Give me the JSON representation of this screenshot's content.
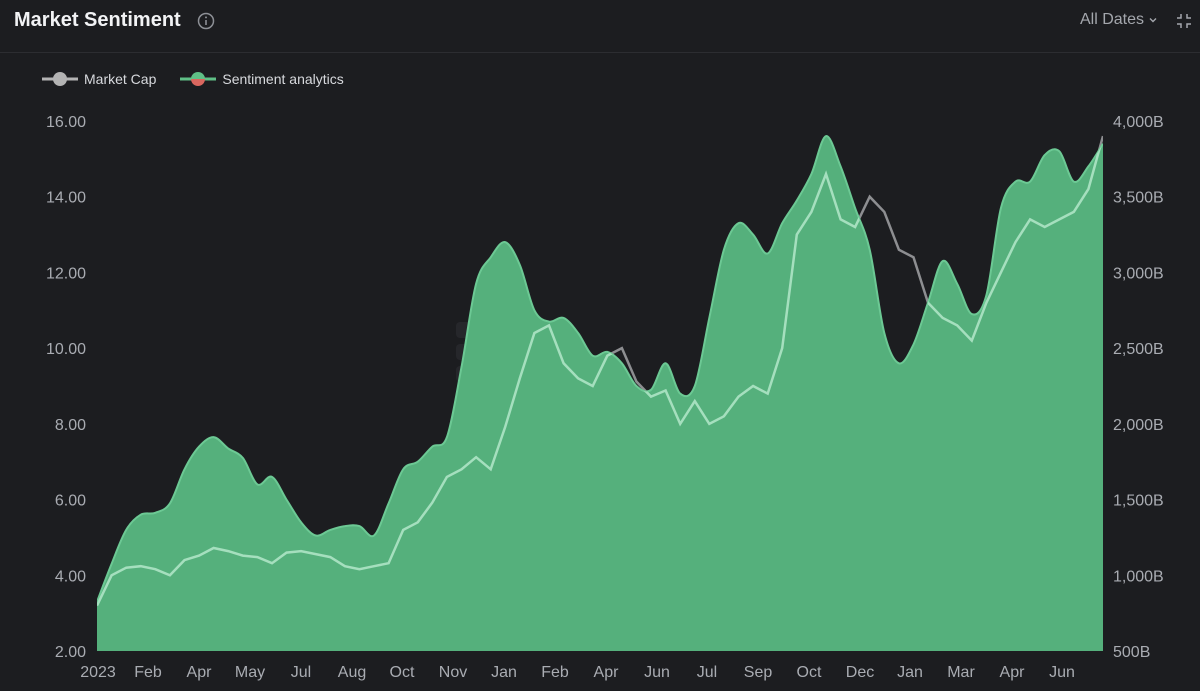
{
  "header": {
    "title": "Market Sentiment",
    "dates_label": "All Dates"
  },
  "legend": [
    {
      "name": "Market Cap",
      "color": "#b3b3b3"
    },
    {
      "name": "Sentiment analytics",
      "color_positive": "#5fbf86",
      "color_negative": "#d9675f"
    }
  ],
  "colors": {
    "area_fill": "#55b07c",
    "area_line": "#6cc994",
    "market_cap_line_over_area": "#a5dfbe",
    "market_cap_line_over_bg": "#8d8e91",
    "background": "#1c1d20",
    "axis_text": "#a9acb2"
  },
  "chart_data": {
    "type": "area",
    "y_left": {
      "ticks": [
        "16.00",
        "14.00",
        "12.00",
        "10.00",
        "8.00",
        "6.00",
        "4.00",
        "2.00"
      ],
      "range": [
        2,
        16
      ]
    },
    "y_right": {
      "ticks": [
        "4,000B",
        "3,500B",
        "3,000B",
        "2,500B",
        "2,000B",
        "1,500B",
        "1,000B",
        "500B"
      ],
      "range": [
        500,
        4000
      ],
      "unit": "B"
    },
    "x_axis": {
      "labels": [
        "2023",
        "Feb",
        "Apr",
        "May",
        "Jul",
        "Aug",
        "Oct",
        "Nov",
        "Jan",
        "Feb",
        "Apr",
        "Jun",
        "Jul",
        "Sep",
        "Oct",
        "Dec",
        "Jan",
        "Mar",
        "Apr",
        "Jun"
      ],
      "range_months": [
        0,
        30
      ]
    },
    "series": [
      {
        "name": "Sentiment analytics",
        "axis": "left",
        "points": [
          [
            0,
            3.3
          ],
          [
            0.5,
            4.3
          ],
          [
            1,
            5.2
          ],
          [
            1.5,
            5.6
          ],
          [
            2,
            5.65
          ],
          [
            2.5,
            5.9
          ],
          [
            3,
            6.8
          ],
          [
            3.5,
            7.4
          ],
          [
            4,
            7.65
          ],
          [
            4.5,
            7.35
          ],
          [
            5,
            7.1
          ],
          [
            5.5,
            6.4
          ],
          [
            6,
            6.6
          ],
          [
            6.5,
            6.0
          ],
          [
            7,
            5.4
          ],
          [
            7.5,
            5.05
          ],
          [
            8,
            5.2
          ],
          [
            8.5,
            5.3
          ],
          [
            9,
            5.3
          ],
          [
            9.5,
            5.05
          ],
          [
            10,
            5.9
          ],
          [
            10.5,
            6.8
          ],
          [
            11,
            7.0
          ],
          [
            11.5,
            7.4
          ],
          [
            12,
            7.65
          ],
          [
            12.5,
            9.5
          ],
          [
            13,
            11.7
          ],
          [
            13.5,
            12.4
          ],
          [
            14,
            12.8
          ],
          [
            14.5,
            12.2
          ],
          [
            15,
            11.0
          ],
          [
            15.5,
            10.7
          ],
          [
            16,
            10.8
          ],
          [
            16.5,
            10.4
          ],
          [
            17,
            9.8
          ],
          [
            17.5,
            9.9
          ],
          [
            18,
            9.6
          ],
          [
            18.5,
            9.0
          ],
          [
            19,
            8.9
          ],
          [
            19.5,
            9.6
          ],
          [
            20,
            8.8
          ],
          [
            20.5,
            9.0
          ],
          [
            21,
            10.8
          ],
          [
            21.5,
            12.6
          ],
          [
            22,
            13.3
          ],
          [
            22.5,
            13.0
          ],
          [
            23,
            12.5
          ],
          [
            23.5,
            13.3
          ],
          [
            24,
            13.9
          ],
          [
            24.5,
            14.6
          ],
          [
            25,
            15.6
          ],
          [
            25.5,
            14.8
          ],
          [
            26,
            13.7
          ],
          [
            26.5,
            12.6
          ],
          [
            27,
            10.4
          ],
          [
            27.5,
            9.6
          ],
          [
            28,
            10.1
          ],
          [
            28.5,
            11.2
          ],
          [
            29,
            12.3
          ],
          [
            29.5,
            11.7
          ],
          [
            30,
            10.9
          ],
          [
            30.5,
            11.4
          ],
          [
            31,
            13.7
          ],
          [
            31.5,
            14.4
          ],
          [
            32,
            14.4
          ],
          [
            32.5,
            15.1
          ],
          [
            33,
            15.2
          ],
          [
            33.5,
            14.4
          ],
          [
            34,
            14.8
          ],
          [
            34.5,
            15.4
          ]
        ]
      },
      {
        "name": "Market Cap",
        "axis": "right",
        "points": [
          [
            0,
            800
          ],
          [
            0.5,
            1000
          ],
          [
            1,
            1050
          ],
          [
            1.5,
            1060
          ],
          [
            2,
            1040
          ],
          [
            2.5,
            1000
          ],
          [
            3,
            1100
          ],
          [
            3.5,
            1130
          ],
          [
            4,
            1180
          ],
          [
            4.5,
            1160
          ],
          [
            5,
            1130
          ],
          [
            5.5,
            1120
          ],
          [
            6,
            1080
          ],
          [
            6.5,
            1150
          ],
          [
            7,
            1160
          ],
          [
            7.5,
            1140
          ],
          [
            8,
            1120
          ],
          [
            8.5,
            1060
          ],
          [
            9,
            1040
          ],
          [
            9.5,
            1060
          ],
          [
            10,
            1080
          ],
          [
            10.5,
            1300
          ],
          [
            11,
            1350
          ],
          [
            11.5,
            1480
          ],
          [
            12,
            1650
          ],
          [
            12.5,
            1700
          ],
          [
            13,
            1780
          ],
          [
            13.5,
            1700
          ],
          [
            14,
            1980
          ],
          [
            14.5,
            2300
          ],
          [
            15,
            2600
          ],
          [
            15.5,
            2650
          ],
          [
            16,
            2400
          ],
          [
            16.5,
            2300
          ],
          [
            17,
            2250
          ],
          [
            17.5,
            2450
          ],
          [
            18,
            2500
          ],
          [
            18.5,
            2280
          ],
          [
            19,
            2180
          ],
          [
            19.5,
            2220
          ],
          [
            20,
            2000
          ],
          [
            20.5,
            2150
          ],
          [
            21,
            2000
          ],
          [
            21.5,
            2050
          ],
          [
            22,
            2180
          ],
          [
            22.5,
            2250
          ],
          [
            23,
            2200
          ],
          [
            23.5,
            2500
          ],
          [
            24,
            3250
          ],
          [
            24.5,
            3400
          ],
          [
            25,
            3650
          ],
          [
            25.5,
            3350
          ],
          [
            26,
            3300
          ],
          [
            26.5,
            3500
          ],
          [
            27,
            3400
          ],
          [
            27.5,
            3150
          ],
          [
            28,
            3100
          ],
          [
            28.5,
            2800
          ],
          [
            29,
            2700
          ],
          [
            29.5,
            2650
          ],
          [
            30,
            2550
          ],
          [
            30.5,
            2800
          ],
          [
            31,
            3000
          ],
          [
            31.5,
            3200
          ],
          [
            32,
            3350
          ],
          [
            32.5,
            3300
          ],
          [
            33,
            3350
          ],
          [
            33.5,
            3400
          ],
          [
            34,
            3550
          ],
          [
            34.5,
            3900
          ]
        ]
      }
    ]
  }
}
